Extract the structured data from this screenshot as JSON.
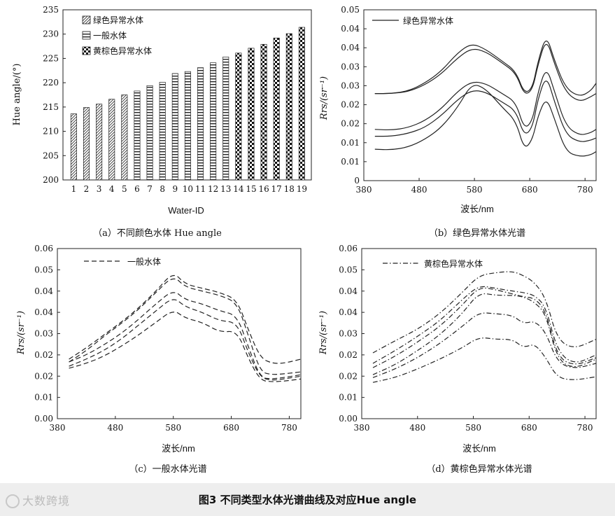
{
  "figure_caption": "图3   不同类型水体光谱曲线及对应Hue angle",
  "watermark": "大数跨境",
  "colors": {
    "line": "#222222",
    "background": "#ffffff",
    "footer_bg": "#eeeeee"
  },
  "chart_data": [
    {
      "id": "a",
      "type": "bar",
      "caption": "（a）不同颜色水体 Hue angle",
      "xlabel": "Water-ID",
      "ylabel": "Hue angle/(°)",
      "ylim": [
        200,
        235
      ],
      "yticks": [
        "200",
        "205",
        "210",
        "215",
        "220",
        "225",
        "230",
        "235"
      ],
      "categories": [
        "1",
        "2",
        "3",
        "4",
        "5",
        "6",
        "7",
        "8",
        "9",
        "10",
        "11",
        "12",
        "13",
        "14",
        "15",
        "16",
        "17",
        "18",
        "19"
      ],
      "legend": [
        "绿色异常水体",
        "一般水体",
        "黄棕色异常水体"
      ],
      "series": [
        {
          "name": "绿色异常水体",
          "pattern": "hatch",
          "values": [
            213.6,
            214.9,
            215.6,
            216.6,
            217.5,
            null,
            null,
            null,
            null,
            null,
            null,
            null,
            null,
            null,
            null,
            null,
            null,
            null,
            null
          ]
        },
        {
          "name": "一般水体",
          "pattern": "stripe",
          "values": [
            null,
            null,
            null,
            null,
            null,
            218.3,
            219.4,
            220.1,
            221.9,
            222.3,
            223.1,
            224.1,
            225.3,
            null,
            null,
            null,
            null,
            null,
            null
          ]
        },
        {
          "name": "黄棕色异常水体",
          "pattern": "checker",
          "values": [
            null,
            null,
            null,
            null,
            null,
            null,
            null,
            null,
            null,
            null,
            null,
            null,
            null,
            226.1,
            227.1,
            227.9,
            229.2,
            230.1,
            231.4
          ]
        }
      ]
    },
    {
      "id": "b",
      "type": "line",
      "caption": "（b）绿色异常水体光谱",
      "xlabel": "波长/nm",
      "ylabel": "Rrs/(sr⁻¹)",
      "xlim": [
        380,
        800
      ],
      "ylim": [
        0,
        0.05
      ],
      "xticks": [
        "380",
        "480",
        "580",
        "680",
        "780"
      ],
      "yticks": [
        "0",
        "0.01",
        "0.01",
        "0.02",
        "0.02",
        "0.03",
        "0.03",
        "0.04",
        "0.04",
        "0.05"
      ],
      "legend": [
        "绿色异常水体"
      ],
      "legend_style": "solid",
      "x": [
        400,
        430,
        460,
        490,
        520,
        550,
        575,
        600,
        630,
        655,
        670,
        685,
        695,
        710,
        725,
        745,
        770,
        790,
        800
      ],
      "series": [
        {
          "name": "1",
          "values": [
            0.0255,
            0.0255,
            0.0262,
            0.0285,
            0.032,
            0.0375,
            0.0402,
            0.0385,
            0.035,
            0.032,
            0.0255,
            0.027,
            0.035,
            0.0428,
            0.035,
            0.027,
            0.0245,
            0.0262,
            0.0285
          ]
        },
        {
          "name": "2",
          "values": [
            0.0255,
            0.0255,
            0.026,
            0.028,
            0.0312,
            0.036,
            0.0388,
            0.0378,
            0.0345,
            0.0315,
            0.025,
            0.0265,
            0.034,
            0.0418,
            0.034,
            0.0258,
            0.023,
            0.0245,
            0.0255
          ]
        },
        {
          "name": "3",
          "values": [
            0.015,
            0.0148,
            0.0155,
            0.0175,
            0.021,
            0.0262,
            0.029,
            0.0285,
            0.0255,
            0.023,
            0.015,
            0.0175,
            0.026,
            0.0335,
            0.026,
            0.016,
            0.0132,
            0.014,
            0.015
          ]
        },
        {
          "name": "4",
          "values": [
            0.013,
            0.013,
            0.0138,
            0.0155,
            0.019,
            0.0238,
            0.0265,
            0.026,
            0.023,
            0.0205,
            0.013,
            0.0155,
            0.024,
            0.031,
            0.023,
            0.0135,
            0.0112,
            0.0118,
            0.0125
          ]
        },
        {
          "name": "5",
          "values": [
            0.0092,
            0.009,
            0.0098,
            0.012,
            0.0155,
            0.0215,
            0.0285,
            0.027,
            0.0215,
            0.0175,
            0.009,
            0.012,
            0.019,
            0.0245,
            0.018,
            0.0085,
            0.007,
            0.0075,
            0.0085
          ]
        }
      ]
    },
    {
      "id": "c",
      "type": "line",
      "caption": "（c）一般水体光谱",
      "xlabel": "波长/nm",
      "ylabel": "Rrs/(sr⁻¹)",
      "xlim": [
        380,
        800
      ],
      "ylim": [
        0,
        0.06
      ],
      "xticks": [
        "380",
        "480",
        "580",
        "680",
        "780"
      ],
      "yticks": [
        "0.00",
        "0.01",
        "0.02",
        "0.02",
        "0.03",
        "0.04",
        "0.04",
        "0.05",
        "0.06"
      ],
      "legend": [
        "一般水体"
      ],
      "legend_style": "dashed",
      "x": [
        400,
        430,
        460,
        490,
        520,
        550,
        580,
        600,
        630,
        660,
        690,
        710,
        730,
        750,
        770,
        800
      ],
      "series": [
        {
          "name": "1",
          "values": [
            0.021,
            0.025,
            0.0295,
            0.034,
            0.039,
            0.045,
            0.0518,
            0.0475,
            0.046,
            0.0445,
            0.042,
            0.031,
            0.0215,
            0.0195,
            0.0195,
            0.021
          ]
        },
        {
          "name": "2",
          "values": [
            0.02,
            0.024,
            0.029,
            0.0335,
            0.0385,
            0.0445,
            0.0505,
            0.0465,
            0.045,
            0.0435,
            0.041,
            0.029,
            0.0165,
            0.0155,
            0.0158,
            0.0165
          ]
        },
        {
          "name": "3",
          "values": [
            0.02,
            0.0225,
            0.026,
            0.03,
            0.035,
            0.0405,
            0.0455,
            0.042,
            0.0405,
            0.038,
            0.0365,
            0.025,
            0.0145,
            0.014,
            0.0145,
            0.0155
          ]
        },
        {
          "name": "4",
          "values": [
            0.0185,
            0.021,
            0.024,
            0.028,
            0.033,
            0.038,
            0.043,
            0.0395,
            0.0375,
            0.0345,
            0.034,
            0.023,
            0.0145,
            0.0135,
            0.014,
            0.015
          ]
        },
        {
          "name": "5",
          "values": [
            0.0178,
            0.0195,
            0.022,
            0.0255,
            0.0295,
            0.034,
            0.0385,
            0.0355,
            0.034,
            0.0305,
            0.031,
            0.021,
            0.0135,
            0.013,
            0.0132,
            0.014
          ]
        }
      ]
    },
    {
      "id": "d",
      "type": "line",
      "caption": "（d）黄棕色异常水体光谱",
      "xlabel": "波长/nm",
      "ylabel": "Rrs/(sr⁻¹)",
      "xlim": [
        380,
        800
      ],
      "ylim": [
        0,
        0.06
      ],
      "xticks": [
        "380",
        "480",
        "580",
        "680",
        "780"
      ],
      "yticks": [
        "0.00",
        "0.01",
        "0.02",
        "0.02",
        "0.03",
        "0.04",
        "0.04",
        "0.05",
        "0.06"
      ],
      "legend": [
        "黄棕色异常水体"
      ],
      "legend_style": "dashdot",
      "x": [
        400,
        440,
        480,
        520,
        560,
        590,
        620,
        650,
        670,
        690,
        710,
        730,
        760,
        800
      ],
      "series": [
        {
          "name": "1",
          "values": [
            0.0232,
            0.0275,
            0.0315,
            0.037,
            0.0445,
            0.0505,
            0.0515,
            0.052,
            0.0505,
            0.048,
            0.0425,
            0.028,
            0.0245,
            0.028
          ]
        },
        {
          "name": "2",
          "values": [
            0.0195,
            0.024,
            0.029,
            0.0345,
            0.042,
            0.047,
            0.046,
            0.045,
            0.0445,
            0.0435,
            0.0395,
            0.024,
            0.019,
            0.0225
          ]
        },
        {
          "name": "3",
          "values": [
            0.018,
            0.022,
            0.027,
            0.0325,
            0.04,
            0.0465,
            0.0455,
            0.044,
            0.043,
            0.0425,
            0.038,
            0.022,
            0.0185,
            0.0215
          ]
        },
        {
          "name": "4",
          "values": [
            0.0155,
            0.019,
            0.024,
            0.0295,
            0.037,
            0.0445,
            0.0435,
            0.0435,
            0.043,
            0.041,
            0.037,
            0.021,
            0.0175,
            0.021
          ]
        },
        {
          "name": "5",
          "values": [
            0.0145,
            0.0175,
            0.0215,
            0.0265,
            0.0325,
            0.0375,
            0.037,
            0.0365,
            0.0335,
            0.0345,
            0.0305,
            0.02,
            0.0175,
            0.0195
          ]
        },
        {
          "name": "6",
          "values": [
            0.0128,
            0.0145,
            0.0175,
            0.021,
            0.025,
            0.0288,
            0.028,
            0.028,
            0.025,
            0.0265,
            0.0215,
            0.0145,
            0.0135,
            0.0148
          ]
        }
      ]
    }
  ]
}
